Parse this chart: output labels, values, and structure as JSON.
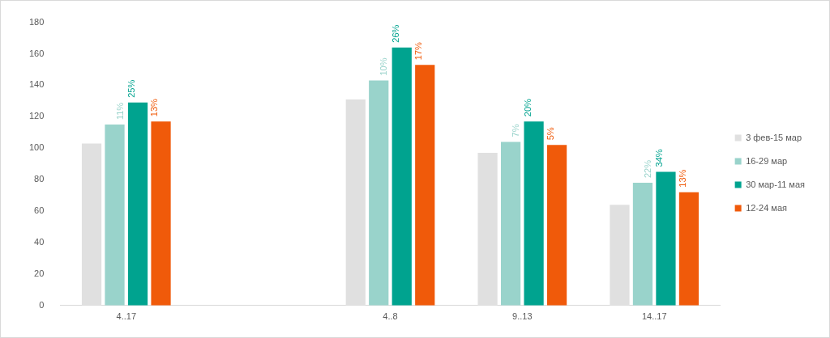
{
  "chart_data": {
    "type": "bar",
    "categories": [
      "4..17",
      null,
      "4..8",
      "9..13",
      "14..17"
    ],
    "series": [
      {
        "name": "3 фев-15 мар",
        "color": "#e0e0e0",
        "values": [
          103,
          null,
          131,
          97,
          64
        ]
      },
      {
        "name": "16-29 мар",
        "color": "#99d3cb",
        "values": [
          115,
          null,
          143,
          104,
          78
        ]
      },
      {
        "name": "30 мар-11 мая",
        "color": "#00a38f",
        "values": [
          129,
          null,
          164,
          117,
          85
        ]
      },
      {
        "name": "12-24 мая",
        "color": "#f05a0a",
        "values": [
          117,
          null,
          153,
          102,
          72
        ]
      }
    ],
    "annotations": [
      {
        "text": "11%",
        "x": "4..17",
        "y": 115
      },
      {
        "text": "25%",
        "x": "4..17",
        "y": 129
      },
      {
        "text": "13%",
        "x": "4..17",
        "y": 117
      },
      {
        "text": "10%",
        "x": "4..8",
        "y": 143
      },
      {
        "text": "26%",
        "x": "4..8",
        "y": 164
      },
      {
        "text": "17%",
        "x": "4..8",
        "y": 153
      },
      {
        "text": "7%",
        "x": "9..13",
        "y": 104
      },
      {
        "text": "20%",
        "x": "9..13",
        "y": 117
      },
      {
        "text": "5%",
        "x": "9..13",
        "y": 102
      },
      {
        "text": "22%",
        "x": "14..17",
        "y": 78
      },
      {
        "text": "34%",
        "x": "14..17",
        "y": 85
      },
      {
        "text": "13%",
        "x": "14..17",
        "y": 72
      }
    ],
    "ylim": [
      0,
      180
    ],
    "yticks": [
      0,
      20,
      40,
      60,
      80,
      100,
      120,
      140,
      160,
      180
    ],
    "grid": false,
    "legend": "right"
  }
}
